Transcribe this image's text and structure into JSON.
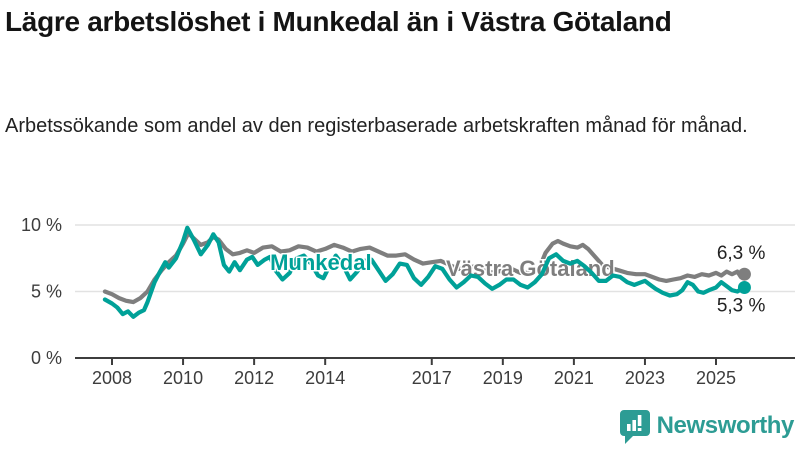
{
  "header": {
    "title": "Lägre arbetslöshet i Munkedal än i Västra Götaland",
    "subtitle": "Arbetssökande som andel av den registerbaserade arbetskraften månad för månad."
  },
  "footer": {
    "logo_text": "Newsworthy"
  },
  "colors": {
    "munkedal": "#00a198",
    "vastra_gotaland": "#7e7e7e",
    "grid": "#e2e2e2",
    "axis": "#3d3d3d",
    "value_label": "#222222",
    "logo_teal": "#2d9c94"
  },
  "chart_data": {
    "type": "line",
    "title": "Lägre arbetslöshet i Munkedal än i Västra Götaland",
    "xlabel": "",
    "ylabel": "Arbetssökande som andel av den registerbaserade arbetskraften",
    "xlim": [
      2007.6,
      2026.4
    ],
    "ylim": [
      0,
      10.8
    ],
    "grid": "horizontal",
    "legend_position": "inline-labels",
    "x_ticks": [
      2008,
      2010,
      2012,
      2014,
      2017,
      2019,
      2021,
      2023,
      2025
    ],
    "y_ticks": [
      {
        "value": 10,
        "label": "10 %"
      },
      {
        "value": 5,
        "label": "5 %"
      },
      {
        "value": 0,
        "label": "0 %"
      }
    ],
    "series": [
      {
        "name": "Västra Götaland",
        "color": "#7e7e7e",
        "end_label": "6,3 %",
        "end_label_position": "above",
        "label_anchor": {
          "x": 2017.4,
          "y": 6.75
        },
        "points": [
          [
            2007.8,
            5.0
          ],
          [
            2008.0,
            4.8
          ],
          [
            2008.2,
            4.5
          ],
          [
            2008.4,
            4.3
          ],
          [
            2008.6,
            4.2
          ],
          [
            2008.8,
            4.5
          ],
          [
            2009.0,
            5.0
          ],
          [
            2009.2,
            5.9
          ],
          [
            2009.4,
            6.6
          ],
          [
            2009.6,
            7.2
          ],
          [
            2009.8,
            7.7
          ],
          [
            2010.0,
            8.6
          ],
          [
            2010.15,
            9.4
          ],
          [
            2010.3,
            9.0
          ],
          [
            2010.5,
            8.5
          ],
          [
            2010.7,
            8.7
          ],
          [
            2010.85,
            9.1
          ],
          [
            2011.0,
            8.9
          ],
          [
            2011.2,
            8.2
          ],
          [
            2011.4,
            7.8
          ],
          [
            2011.6,
            7.9
          ],
          [
            2011.8,
            8.1
          ],
          [
            2012.0,
            7.9
          ],
          [
            2012.25,
            8.3
          ],
          [
            2012.5,
            8.4
          ],
          [
            2012.75,
            8.0
          ],
          [
            2013.0,
            8.1
          ],
          [
            2013.25,
            8.4
          ],
          [
            2013.5,
            8.3
          ],
          [
            2013.75,
            8.0
          ],
          [
            2014.0,
            8.2
          ],
          [
            2014.25,
            8.5
          ],
          [
            2014.5,
            8.3
          ],
          [
            2014.75,
            8.0
          ],
          [
            2015.0,
            8.2
          ],
          [
            2015.25,
            8.3
          ],
          [
            2015.5,
            8.0
          ],
          [
            2015.75,
            7.7
          ],
          [
            2016.0,
            7.7
          ],
          [
            2016.25,
            7.8
          ],
          [
            2016.5,
            7.4
          ],
          [
            2016.75,
            7.1
          ],
          [
            2017.0,
            7.2
          ],
          [
            2017.25,
            7.3
          ],
          [
            2017.5,
            7.0
          ],
          [
            2017.75,
            6.7
          ],
          [
            2018.0,
            6.8
          ],
          [
            2018.25,
            6.9
          ],
          [
            2018.5,
            6.6
          ],
          [
            2018.75,
            6.4
          ],
          [
            2019.0,
            6.6
          ],
          [
            2019.25,
            6.7
          ],
          [
            2019.5,
            6.4
          ],
          [
            2019.75,
            6.4
          ],
          [
            2020.0,
            6.6
          ],
          [
            2020.2,
            7.9
          ],
          [
            2020.4,
            8.6
          ],
          [
            2020.55,
            8.8
          ],
          [
            2020.7,
            8.6
          ],
          [
            2020.9,
            8.4
          ],
          [
            2021.1,
            8.3
          ],
          [
            2021.25,
            8.5
          ],
          [
            2021.4,
            8.2
          ],
          [
            2021.6,
            7.6
          ],
          [
            2021.8,
            7.0
          ],
          [
            2022.0,
            6.8
          ],
          [
            2022.25,
            6.6
          ],
          [
            2022.5,
            6.4
          ],
          [
            2022.75,
            6.3
          ],
          [
            2023.0,
            6.3
          ],
          [
            2023.2,
            6.1
          ],
          [
            2023.4,
            5.9
          ],
          [
            2023.6,
            5.8
          ],
          [
            2023.8,
            5.9
          ],
          [
            2024.0,
            6.0
          ],
          [
            2024.2,
            6.2
          ],
          [
            2024.4,
            6.1
          ],
          [
            2024.6,
            6.3
          ],
          [
            2024.8,
            6.2
          ],
          [
            2025.0,
            6.4
          ],
          [
            2025.15,
            6.2
          ],
          [
            2025.3,
            6.5
          ],
          [
            2025.45,
            6.3
          ],
          [
            2025.6,
            6.5
          ],
          [
            2025.7,
            6.1
          ],
          [
            2025.8,
            6.3
          ]
        ]
      },
      {
        "name": "Munkedal",
        "color": "#00a198",
        "end_label": "5,3 %",
        "end_label_position": "below",
        "label_anchor": {
          "x": 2012.45,
          "y": 7.2
        },
        "points": [
          [
            2007.8,
            4.4
          ],
          [
            2008.0,
            4.1
          ],
          [
            2008.15,
            3.8
          ],
          [
            2008.3,
            3.3
          ],
          [
            2008.45,
            3.5
          ],
          [
            2008.6,
            3.1
          ],
          [
            2008.75,
            3.4
          ],
          [
            2008.9,
            3.6
          ],
          [
            2009.0,
            4.2
          ],
          [
            2009.2,
            5.7
          ],
          [
            2009.35,
            6.5
          ],
          [
            2009.5,
            7.2
          ],
          [
            2009.6,
            6.8
          ],
          [
            2009.8,
            7.5
          ],
          [
            2010.0,
            8.8
          ],
          [
            2010.12,
            9.8
          ],
          [
            2010.3,
            8.9
          ],
          [
            2010.5,
            7.8
          ],
          [
            2010.7,
            8.5
          ],
          [
            2010.85,
            9.3
          ],
          [
            2011.0,
            8.7
          ],
          [
            2011.15,
            7.0
          ],
          [
            2011.3,
            6.5
          ],
          [
            2011.45,
            7.2
          ],
          [
            2011.6,
            6.6
          ],
          [
            2011.8,
            7.4
          ],
          [
            2011.95,
            7.6
          ],
          [
            2012.1,
            7.0
          ],
          [
            2012.3,
            7.4
          ],
          [
            2012.45,
            7.6
          ],
          [
            2012.6,
            6.6
          ],
          [
            2012.8,
            5.9
          ],
          [
            2013.0,
            6.4
          ],
          [
            2013.2,
            7.5
          ],
          [
            2013.4,
            7.7
          ],
          [
            2013.6,
            7.1
          ],
          [
            2013.8,
            6.2
          ],
          [
            2013.95,
            6.0
          ],
          [
            2014.1,
            6.8
          ],
          [
            2014.3,
            7.7
          ],
          [
            2014.5,
            7.0
          ],
          [
            2014.7,
            5.9
          ],
          [
            2014.9,
            6.5
          ],
          [
            2015.1,
            7.3
          ],
          [
            2015.3,
            7.4
          ],
          [
            2015.5,
            6.6
          ],
          [
            2015.7,
            5.8
          ],
          [
            2015.9,
            6.3
          ],
          [
            2016.1,
            7.1
          ],
          [
            2016.3,
            7.0
          ],
          [
            2016.5,
            6.0
          ],
          [
            2016.7,
            5.5
          ],
          [
            2016.9,
            6.1
          ],
          [
            2017.1,
            6.9
          ],
          [
            2017.3,
            6.7
          ],
          [
            2017.5,
            5.9
          ],
          [
            2017.7,
            5.3
          ],
          [
            2017.9,
            5.7
          ],
          [
            2018.1,
            6.2
          ],
          [
            2018.3,
            6.1
          ],
          [
            2018.5,
            5.6
          ],
          [
            2018.7,
            5.2
          ],
          [
            2018.9,
            5.5
          ],
          [
            2019.1,
            5.9
          ],
          [
            2019.3,
            5.9
          ],
          [
            2019.5,
            5.5
          ],
          [
            2019.7,
            5.3
          ],
          [
            2019.9,
            5.7
          ],
          [
            2020.1,
            6.3
          ],
          [
            2020.3,
            7.5
          ],
          [
            2020.5,
            7.8
          ],
          [
            2020.7,
            7.3
          ],
          [
            2020.9,
            7.1
          ],
          [
            2021.1,
            7.3
          ],
          [
            2021.3,
            6.9
          ],
          [
            2021.5,
            6.4
          ],
          [
            2021.7,
            5.8
          ],
          [
            2021.9,
            5.8
          ],
          [
            2022.1,
            6.2
          ],
          [
            2022.3,
            6.1
          ],
          [
            2022.5,
            5.7
          ],
          [
            2022.7,
            5.5
          ],
          [
            2022.9,
            5.7
          ],
          [
            2023.0,
            5.8
          ],
          [
            2023.15,
            5.5
          ],
          [
            2023.3,
            5.2
          ],
          [
            2023.5,
            4.9
          ],
          [
            2023.7,
            4.7
          ],
          [
            2023.9,
            4.8
          ],
          [
            2024.05,
            5.1
          ],
          [
            2024.2,
            5.7
          ],
          [
            2024.35,
            5.5
          ],
          [
            2024.5,
            5.0
          ],
          [
            2024.65,
            4.9
          ],
          [
            2024.8,
            5.1
          ],
          [
            2025.0,
            5.3
          ],
          [
            2025.15,
            5.7
          ],
          [
            2025.3,
            5.4
          ],
          [
            2025.45,
            5.1
          ],
          [
            2025.6,
            5.0
          ],
          [
            2025.8,
            5.3
          ]
        ]
      }
    ]
  }
}
